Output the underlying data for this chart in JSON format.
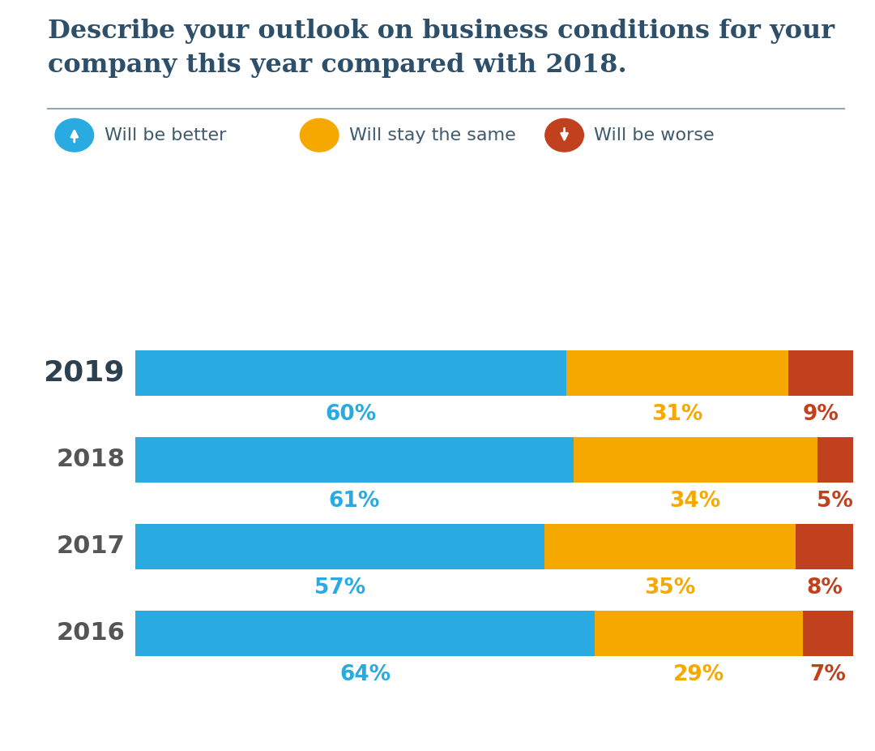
{
  "title_line1": "Describe your outlook on business conditions for your",
  "title_line2": "company this year compared with 2018.",
  "title_color": "#2d4f6a",
  "title_fontsize": 23,
  "years": [
    "2019",
    "2018",
    "2017",
    "2016"
  ],
  "better": [
    60,
    61,
    57,
    64
  ],
  "same": [
    31,
    34,
    35,
    29
  ],
  "worse": [
    9,
    5,
    8,
    7
  ],
  "color_better": "#29abe2",
  "color_same": "#f5a800",
  "color_worse": "#c1411e",
  "legend_text_color": "#3d5a6e",
  "year_color_2019": "#2d4050",
  "year_color_other": "#555555",
  "bar_height": 0.52,
  "background_color": "#ffffff",
  "label_fontsize": 19,
  "year_label_fontsize": 22,
  "year_2019_fontsize": 26,
  "separator_color": "#8da8bb",
  "legend_fontsize": 16
}
